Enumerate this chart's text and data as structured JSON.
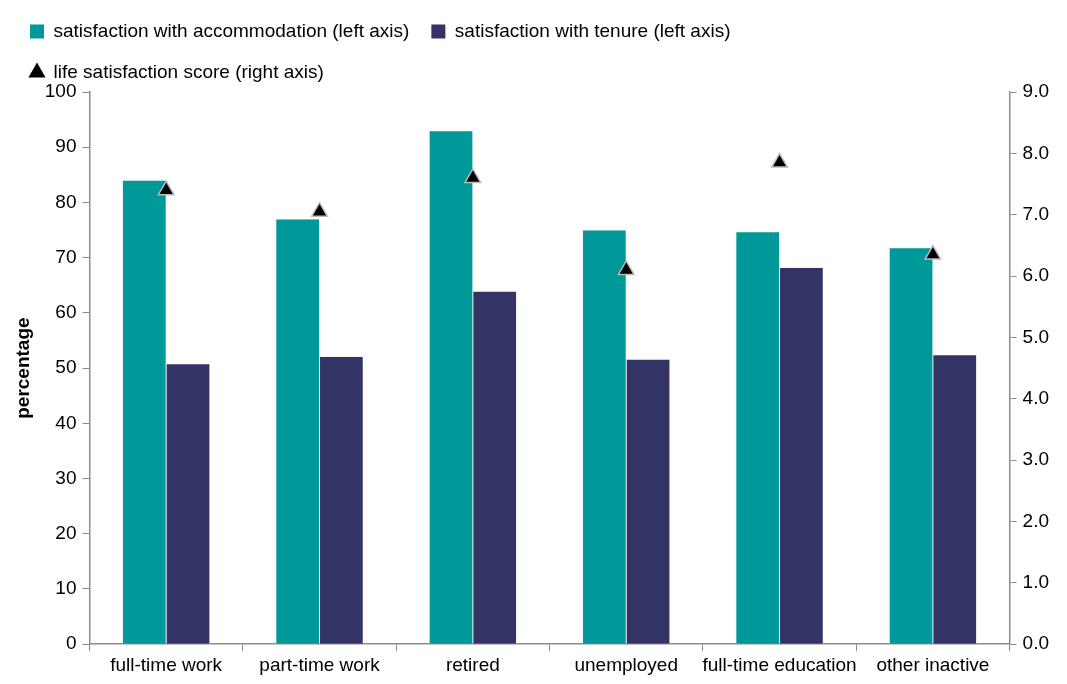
{
  "chart_data": {
    "type": "bar",
    "ylabel": "percentage",
    "categories": [
      "full-time work",
      "part-time work",
      "retired",
      "unemployed",
      "full-time education",
      "other inactive"
    ],
    "series": [
      {
        "name": "satisfaction with accommodation (left axis)",
        "color": "#009999",
        "values": [
          84,
          77,
          93,
          75,
          74.7,
          71.8
        ]
      },
      {
        "name": "satisfaction with tenure (left axis)",
        "color": "#333366",
        "values": [
          50.8,
          52.1,
          63.9,
          51.6,
          68.2,
          52.4
        ]
      },
      {
        "name": "life satisfaction score (right axis)",
        "type": "scatter",
        "axis": "y2",
        "marker": "triangle",
        "color": "#000000",
        "x": [
          "full-time work",
          "part-time work",
          "retired",
          "unemployed",
          "full-time education",
          "other inactive"
        ],
        "values": [
          7.4,
          7.05,
          7.6,
          6.1,
          7.85,
          6.35
        ]
      }
    ],
    "ylim": [
      0,
      100
    ],
    "yticks": [
      0,
      10,
      20,
      30,
      40,
      50,
      60,
      70,
      80,
      90,
      100
    ],
    "y2lim": [
      0,
      9
    ],
    "y2ticks": [
      {
        "value": 0,
        "label": "0.0"
      },
      {
        "value": 1,
        "label": "1.0"
      },
      {
        "value": 2,
        "label": "2.0"
      },
      {
        "value": 3,
        "label": "3.0"
      },
      {
        "value": 4,
        "label": "4.0"
      },
      {
        "value": 5,
        "label": "5.0"
      },
      {
        "value": 6,
        "label": "6.0"
      },
      {
        "value": 7,
        "label": "7.0"
      },
      {
        "value": 8,
        "label": "8.0"
      },
      {
        "value": 9,
        "label": "9.0"
      }
    ],
    "grid": false,
    "legend": "top left"
  }
}
